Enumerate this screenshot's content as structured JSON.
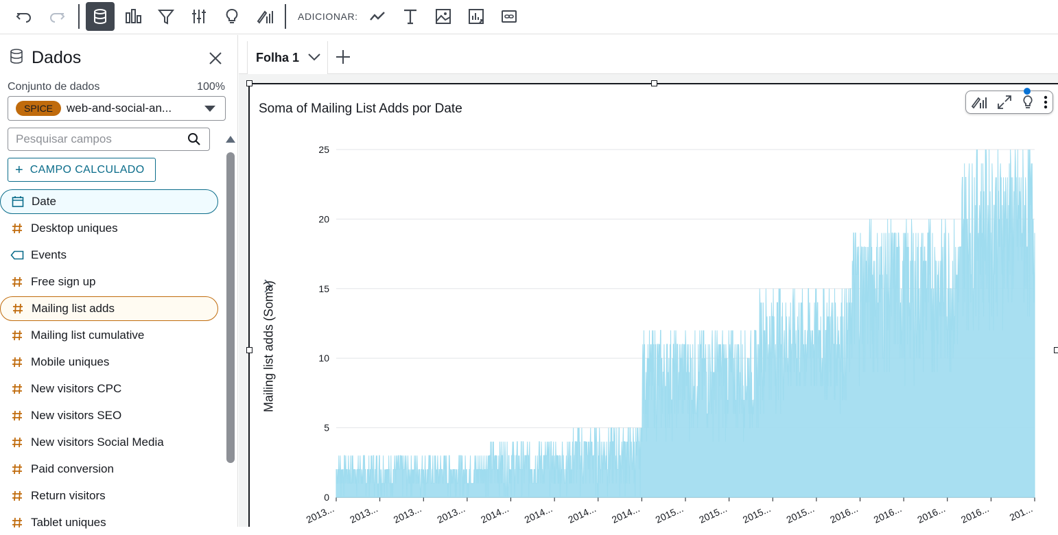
{
  "toolbar": {
    "add_label": "ADICIONAR:",
    "buttons": [
      "undo-icon",
      "redo-icon",
      "data-icon",
      "visualize-icon",
      "filter-icon",
      "parameters-icon",
      "insights-icon",
      "format-visual-icon"
    ],
    "add_buttons": [
      "line-chart-icon",
      "text-icon",
      "image-icon",
      "custom-visual-icon",
      "link-icon"
    ]
  },
  "left_panel": {
    "title": "Dados",
    "dataset_label": "Conjunto de dados",
    "dataset_pct": "100%",
    "dataset_badge": "SPICE",
    "dataset_name": "web-and-social-an...",
    "search_placeholder": "Pesquisar campos",
    "calc_field_label": "CAMPO CALCULADO",
    "fields": [
      {
        "label": "Date",
        "type": "date"
      },
      {
        "label": "Desktop uniques",
        "type": "number"
      },
      {
        "label": "Events",
        "type": "dimension"
      },
      {
        "label": "Free sign up",
        "type": "number"
      },
      {
        "label": "Mailing list adds",
        "type": "number"
      },
      {
        "label": "Mailing list cumulative",
        "type": "number"
      },
      {
        "label": "Mobile uniques",
        "type": "number"
      },
      {
        "label": "New visitors CPC",
        "type": "number"
      },
      {
        "label": "New visitors SEO",
        "type": "number"
      },
      {
        "label": "New visitors Social Media",
        "type": "number"
      },
      {
        "label": "Paid conversion",
        "type": "number"
      },
      {
        "label": "Return visitors",
        "type": "number"
      },
      {
        "label": "Tablet uniques",
        "type": "number"
      }
    ]
  },
  "sheet": {
    "tab_label": "Folha 1"
  },
  "visual": {
    "title": "Soma of Mailing List Adds por Date"
  },
  "colors": {
    "accent": "#0a6c8a",
    "orange": "#c06b0c",
    "series": "#9fdcef"
  },
  "chart_data": {
    "type": "area",
    "title": "Soma of Mailing List Adds por Date",
    "ylabel": "Mailing list adds (Soma)",
    "xlabel": "",
    "ylim": [
      0,
      25
    ],
    "yticks": [
      0,
      5,
      10,
      15,
      20,
      25
    ],
    "xtick_labels": [
      "2013...",
      "2013...",
      "2013...",
      "2013...",
      "2014...",
      "2014...",
      "2014...",
      "2014...",
      "2015...",
      "2015...",
      "2015...",
      "2015...",
      "2016...",
      "2016...",
      "2016...",
      "2016...",
      "201..."
    ],
    "grid": true,
    "series": [
      {
        "segments": [
          {
            "start_index": 0,
            "end_index": 399,
            "min": 0,
            "max": 3
          },
          {
            "start_index": 400,
            "end_index": 640,
            "min": 0,
            "max": 4
          },
          {
            "start_index": 641,
            "end_index": 830,
            "min": 0,
            "max": 5
          },
          {
            "start_index": 831,
            "end_index": 1150,
            "min": 4,
            "max": 12
          },
          {
            "start_index": 1151,
            "end_index": 1400,
            "min": 6,
            "max": 15
          },
          {
            "start_index": 1401,
            "end_index": 1700,
            "min": 8,
            "max": 20
          },
          {
            "start_index": 1701,
            "end_index": 1900,
            "min": 12,
            "max": 25
          }
        ]
      }
    ]
  }
}
